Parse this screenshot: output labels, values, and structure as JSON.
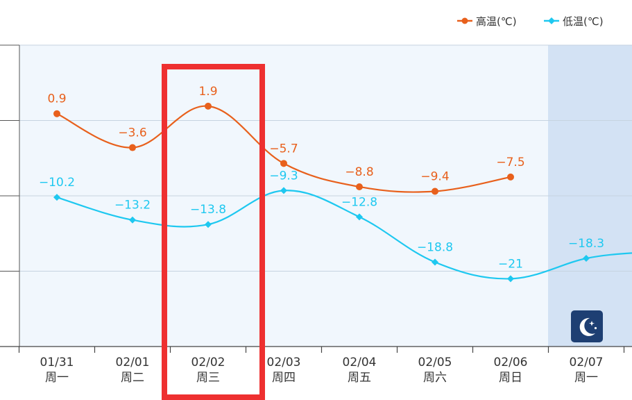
{
  "chart_data": {
    "type": "line",
    "categories": [
      "01/31",
      "02/01",
      "02/02",
      "02/03",
      "02/04",
      "02/05",
      "02/06",
      "02/07"
    ],
    "weekdays": [
      "周一",
      "周二",
      "周三",
      "周四",
      "周五",
      "周六",
      "周日",
      "周一"
    ],
    "series": [
      {
        "name": "高温(℃)",
        "color": "#e8601c",
        "values": [
          0.9,
          -3.6,
          1.9,
          -5.7,
          -8.8,
          -9.4,
          -7.5,
          null
        ],
        "labels": [
          "0.9",
          "−3.6",
          "1.9",
          "−5.7",
          "−8.8",
          "−9.4",
          "−7.5",
          null
        ]
      },
      {
        "name": "低温(℃)",
        "color": "#1ec8f0",
        "values": [
          -10.2,
          -13.2,
          -13.8,
          -9.3,
          -12.8,
          -18.8,
          -21,
          -18.3
        ],
        "labels": [
          "−10.2",
          "−13.2",
          "−13.8",
          "−9.3",
          "−12.8",
          "−18.8",
          "−21",
          "−18.3"
        ]
      }
    ],
    "ylim": [
      -30,
      10
    ],
    "grid": true,
    "legend": "top-right",
    "plot_background": "#f1f7fd",
    "night_band_color": "#d3e2f4",
    "highlight_color": "#ee3030",
    "highlight_category": "02/02",
    "night_icon": "moon-stars-icon"
  }
}
